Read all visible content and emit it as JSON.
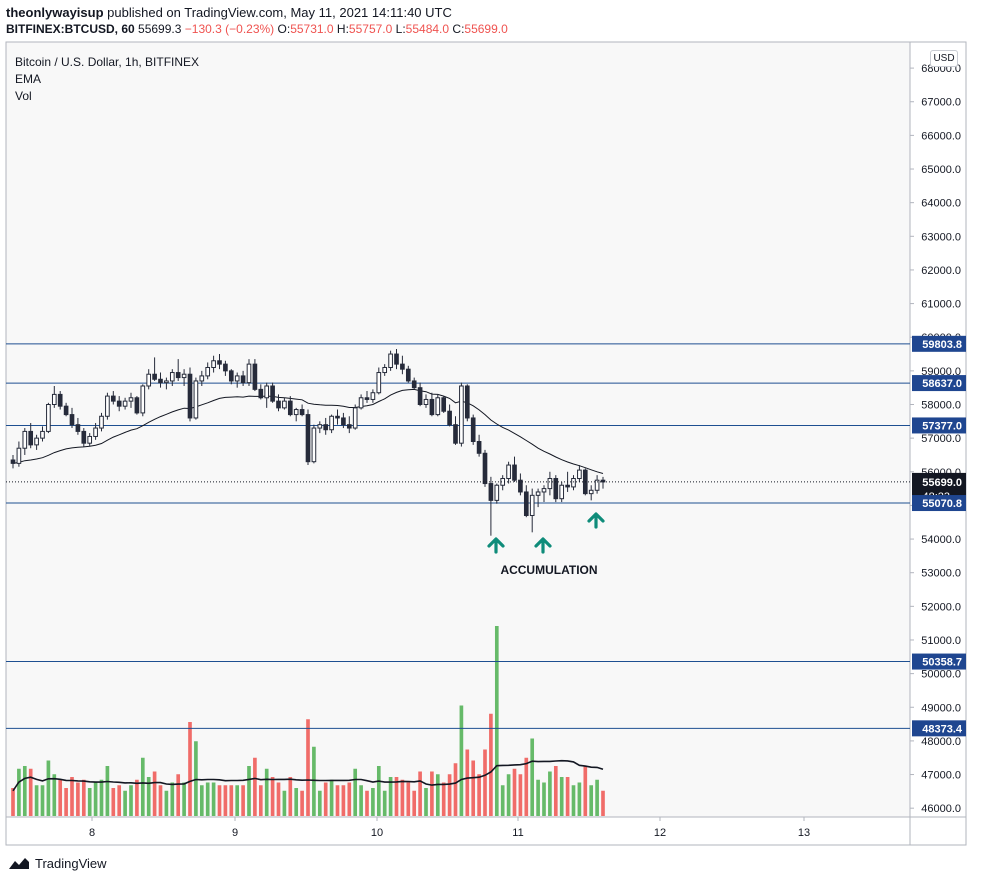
{
  "header": {
    "author": "theonlywayisup",
    "published": "published on TradingView.com, May 11, 2021 14:11:40 UTC",
    "symbol": "BITFINEX:BTCUSD, 60",
    "last": "55699.3",
    "change": "−130.3 (−0.23%)",
    "o_label": "O:",
    "o": "55731.0",
    "h_label": "H:",
    "h": "55757.0",
    "l_label": "L:",
    "l": "55484.0",
    "c_label": "C:",
    "c": "55699.0"
  },
  "legend": {
    "title": "Bitcoin / U.S. Dollar, 1h, BITFINEX",
    "ema": "EMA",
    "vol": "Vol"
  },
  "currency": "USD",
  "footer": {
    "brand": "TradingView"
  },
  "colors": {
    "up": "#4caf50",
    "down": "#ef5350",
    "line": "#1e4f91",
    "label_bg": "#1f4690",
    "arrow": "#0f8c7a",
    "candle_up": "#ffffff",
    "candle_down": "#262b3a"
  },
  "chart_data": {
    "type": "candlestick",
    "y_axis": {
      "range": [
        45850,
        68300
      ],
      "ticks": [
        "46000.0",
        "47000.0",
        "48000.0",
        "49000.0",
        "50000.0",
        "51000.0",
        "52000.0",
        "53000.0",
        "54000.0",
        "55000.0",
        "56000.0",
        "57000.0",
        "58000.0",
        "59000.0",
        "60000.0",
        "61000.0",
        "62000.0",
        "63000.0",
        "64000.0",
        "65000.0",
        "66000.0",
        "67000.0",
        "68000.0"
      ]
    },
    "x_axis": {
      "ticks": [
        "8",
        "9",
        "10",
        "11",
        "12",
        "13"
      ]
    },
    "horizontal_levels": [
      "59803.8",
      "58637.0",
      "57377.0",
      "55070.8",
      "50358.7",
      "48373.4"
    ],
    "current_price": "55699.0",
    "countdown": "48:23",
    "annotation": "ACCUMULATION",
    "candles": [
      [
        56350,
        56500,
        56100,
        56250
      ],
      [
        56250,
        56900,
        56150,
        56700
      ],
      [
        56700,
        57300,
        56500,
        57200
      ],
      [
        57200,
        57450,
        56700,
        56800
      ],
      [
        56800,
        57100,
        56650,
        57000
      ],
      [
        57000,
        57350,
        56900,
        57200
      ],
      [
        57200,
        58050,
        57150,
        58000
      ],
      [
        58000,
        58550,
        57900,
        58300
      ],
      [
        58300,
        58400,
        57850,
        57950
      ],
      [
        57950,
        58050,
        57650,
        57700
      ],
      [
        57700,
        57900,
        57300,
        57400
      ],
      [
        57400,
        57600,
        57100,
        57200
      ],
      [
        57200,
        57300,
        56750,
        56850
      ],
      [
        56850,
        57150,
        56750,
        57050
      ],
      [
        57050,
        57450,
        56950,
        57300
      ],
      [
        57300,
        57750,
        57200,
        57650
      ],
      [
        57650,
        58350,
        57550,
        58250
      ],
      [
        58250,
        58400,
        58000,
        58100
      ],
      [
        58100,
        58250,
        57800,
        57950
      ],
      [
        57950,
        58200,
        57850,
        58100
      ],
      [
        58100,
        58350,
        57900,
        58200
      ],
      [
        58200,
        58250,
        57700,
        57750
      ],
      [
        57750,
        58600,
        57650,
        58550
      ],
      [
        58550,
        59050,
        58450,
        58900
      ],
      [
        58900,
        59400,
        58700,
        58750
      ],
      [
        58750,
        58950,
        58500,
        58650
      ],
      [
        58650,
        58800,
        58450,
        58700
      ],
      [
        58700,
        59050,
        58550,
        58950
      ],
      [
        58950,
        59350,
        58700,
        58800
      ],
      [
        58800,
        59050,
        58550,
        58900
      ],
      [
        58900,
        59100,
        57500,
        57600
      ],
      [
        57600,
        58800,
        57550,
        58700
      ],
      [
        58700,
        59000,
        58550,
        58850
      ],
      [
        58850,
        59250,
        58750,
        59100
      ],
      [
        59100,
        59450,
        58950,
        59300
      ],
      [
        59300,
        59500,
        59050,
        59200
      ],
      [
        59200,
        59300,
        58850,
        59000
      ],
      [
        59000,
        59050,
        58600,
        58700
      ],
      [
        58700,
        58950,
        58500,
        58850
      ],
      [
        58850,
        59000,
        58550,
        58650
      ],
      [
        58650,
        59350,
        58550,
        59200
      ],
      [
        59200,
        59350,
        58400,
        58450
      ],
      [
        58450,
        58600,
        58150,
        58200
      ],
      [
        58200,
        58650,
        57900,
        58550
      ],
      [
        58550,
        58650,
        58050,
        58100
      ],
      [
        58100,
        58300,
        57800,
        57900
      ],
      [
        57900,
        58200,
        57850,
        58100
      ],
      [
        58100,
        58250,
        57650,
        57700
      ],
      [
        57700,
        57900,
        57500,
        57850
      ],
      [
        57850,
        58000,
        57650,
        57700
      ],
      [
        57700,
        57850,
        56200,
        56300
      ],
      [
        56300,
        57400,
        56250,
        57300
      ],
      [
        57300,
        57500,
        57150,
        57400
      ],
      [
        57400,
        57600,
        57100,
        57250
      ],
      [
        57250,
        57700,
        57150,
        57650
      ],
      [
        57650,
        57850,
        57400,
        57600
      ],
      [
        57600,
        57750,
        57300,
        57400
      ],
      [
        57400,
        57650,
        57150,
        57300
      ],
      [
        57300,
        58000,
        57250,
        57900
      ],
      [
        57900,
        58300,
        57850,
        58200
      ],
      [
        58200,
        58400,
        58050,
        58150
      ],
      [
        58150,
        58450,
        58050,
        58350
      ],
      [
        58350,
        59100,
        58300,
        58950
      ],
      [
        58950,
        59200,
        58850,
        59100
      ],
      [
        59100,
        59600,
        59000,
        59500
      ],
      [
        59500,
        59650,
        59050,
        59200
      ],
      [
        59200,
        59450,
        58900,
        59050
      ],
      [
        59050,
        59150,
        58650,
        58700
      ],
      [
        58700,
        58800,
        58450,
        58500
      ],
      [
        58500,
        58650,
        57950,
        58000
      ],
      [
        58000,
        58300,
        57900,
        58150
      ],
      [
        58150,
        58350,
        57650,
        57700
      ],
      [
        57700,
        58300,
        57650,
        58200
      ],
      [
        58200,
        58250,
        57750,
        57800
      ],
      [
        57800,
        58000,
        57350,
        57400
      ],
      [
        57400,
        57650,
        56800,
        56850
      ],
      [
        56850,
        58650,
        56750,
        58550
      ],
      [
        58550,
        58600,
        57500,
        57600
      ],
      [
        57600,
        57700,
        56800,
        56900
      ],
      [
        56900,
        57100,
        56450,
        56550
      ],
      [
        56550,
        56650,
        55550,
        55650
      ],
      [
        55650,
        55850,
        54100,
        55150
      ],
      [
        55150,
        55650,
        55050,
        55600
      ],
      [
        55600,
        55900,
        55450,
        55800
      ],
      [
        55800,
        56300,
        55650,
        56200
      ],
      [
        56200,
        56450,
        55700,
        55750
      ],
      [
        55750,
        55950,
        55300,
        55400
      ],
      [
        55400,
        55600,
        54650,
        54700
      ],
      [
        54700,
        55500,
        54200,
        55300
      ],
      [
        55300,
        55500,
        54950,
        55400
      ],
      [
        55400,
        55600,
        55100,
        55500
      ],
      [
        55500,
        56000,
        55300,
        55800
      ],
      [
        55800,
        55900,
        55100,
        55200
      ],
      [
        55200,
        55700,
        55100,
        55600
      ],
      [
        55600,
        56000,
        55400,
        55550
      ],
      [
        55550,
        55900,
        55450,
        55800
      ],
      [
        55800,
        56200,
        55700,
        56050
      ],
      [
        56050,
        56100,
        55300,
        55350
      ],
      [
        55350,
        55600,
        55150,
        55450
      ],
      [
        55450,
        55900,
        55350,
        55750
      ],
      [
        55750,
        55850,
        55500,
        55699
      ]
    ],
    "ema": [
      56250,
      56280,
      56330,
      56350,
      56380,
      56420,
      56490,
      56570,
      56630,
      56680,
      56710,
      56730,
      56740,
      56760,
      56790,
      56840,
      56940,
      57030,
      57100,
      57170,
      57240,
      57280,
      57370,
      57470,
      57560,
      57640,
      57710,
      57780,
      57840,
      57890,
      57880,
      57930,
      57990,
      58050,
      58120,
      58180,
      58210,
      58220,
      58230,
      58220,
      58250,
      58240,
      58240,
      58250,
      58240,
      58210,
      58200,
      58180,
      58160,
      58140,
      58040,
      58010,
      57990,
      57980,
      57980,
      57970,
      57950,
      57910,
      57910,
      57940,
      57960,
      58000,
      58090,
      58170,
      58280,
      58360,
      58420,
      58440,
      58450,
      58410,
      58380,
      58310,
      58300,
      58250,
      58180,
      58050,
      58100,
      58050,
      57960,
      57840,
      57700,
      57540,
      57420,
      57320,
      57240,
      57140,
      57040,
      56930,
      56820,
      56700,
      56610,
      56530,
      56440,
      56360,
      56290,
      56230,
      56180,
      56120,
      56060,
      56000,
      55950
    ]
  }
}
